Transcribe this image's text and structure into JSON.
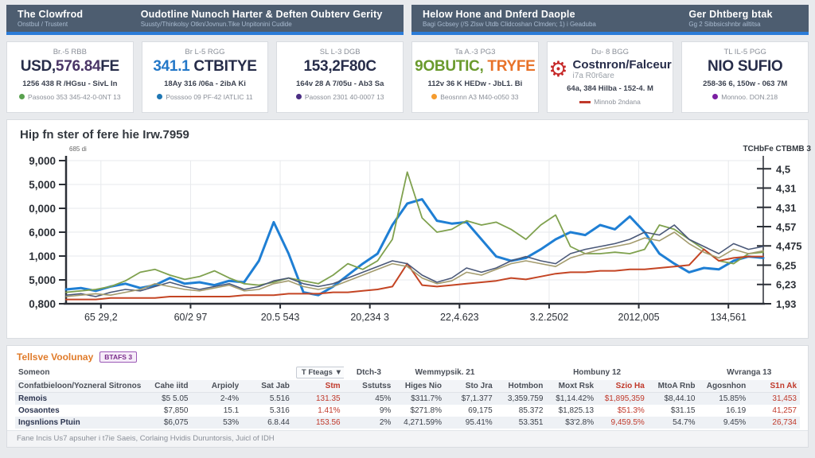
{
  "header": {
    "bars": [
      {
        "sections": [
          {
            "title": "The Clowfrod",
            "subtitle": "Onstbul / Trustent"
          },
          {
            "title": "Oudotline Nunoch Harter & Deften Oubterv Gerity",
            "subtitle": "Suusty/Thinkolsy Otkn/Jovnun.Tike Unpitonini Cudide"
          }
        ]
      },
      {
        "sections": [
          {
            "title": "Helow Hone and Dnferd Daople",
            "subtitle": "Bagi Gcbsey (/S Zlsw Utdb Clidcoshan Clmden; 1) i Geaduba"
          },
          {
            "title": "Ger Dhtberg btak",
            "subtitle": "Gg 2 Sibbsicshnbr ailtitsa"
          }
        ]
      }
    ]
  },
  "kpi_cards": [
    {
      "label": "Br.-5 RBB",
      "value_parts": [
        {
          "text": "USD,",
          "color": "#272d4a"
        },
        {
          "text": "576.84",
          "color": "#4a3566"
        },
        {
          "text": "FE",
          "color": "#272d4a"
        }
      ],
      "sub": "1256 438 R /HGsu - SivL In",
      "bullet": {
        "type": "dot",
        "color": "#59a14f",
        "text": "Pasosoo 353 345-42-0-0NT 13"
      }
    },
    {
      "label": "Br L-5 RGG",
      "value_parts": [
        {
          "text": "341.1",
          "color": "#2478c8"
        },
        {
          "text": " CTBITYE",
          "color": "#272d4a"
        }
      ],
      "sub": "18Ay 316 /06a - 2ibA Ki",
      "bullet": {
        "type": "dot",
        "color": "#1f77b4",
        "text": "Posssoo 09 PF-42 IATLIC 11"
      }
    },
    {
      "label": "SL L-3 DGB",
      "value_parts": [
        {
          "text": "153,2F80C",
          "color": "#272d4a"
        }
      ],
      "sub": "164v 28 A 7/05u - Ab3 Sa",
      "bullet": {
        "type": "dot",
        "color": "#4b2e83",
        "text": "Paosson 2301 40-0007 13"
      }
    },
    {
      "label": "Ta A.-3 PG3",
      "value_parts": [
        {
          "text": "9OBUTIC,",
          "color": "#6a9a2d"
        },
        {
          "text": " TRYFE",
          "color": "#e8732a"
        }
      ],
      "sub": "112v 36 K HEDw - JbL1. Bi",
      "bullet": {
        "type": "dot",
        "color": "#f59c2f",
        "text": "Beosnnn A3 M40-o050 33"
      }
    },
    {
      "label": "Du- 8 BGG",
      "gear": {
        "icon": "gear-icon",
        "title": "Costnron/Falceur",
        "subtitle": "i7a R0r6are"
      },
      "sub": "64a, 384 Hilba - 152-4. M",
      "bullet": {
        "type": "dash",
        "color": "#c0392b",
        "text": "Minnob 2ndana"
      }
    },
    {
      "label": "TL IL-5 PGG",
      "value_parts": [
        {
          "text": "NIO SUFIO",
          "color": "#272d4a"
        }
      ],
      "sub": "258-36 6, 150w - 063 7M",
      "bullet": {
        "type": "dot",
        "color": "#7b1fa2",
        "text": "Monnoo. DON.218"
      }
    }
  ],
  "chart_data": {
    "type": "line",
    "title": "Hip fn ster of fere hie Irw.7959",
    "y_axis_note": "685 di",
    "right_axis_title": "TCHbFe CTBMB 3",
    "y_left_ticks": [
      "9,000",
      "5,000",
      "0,000",
      "6,000",
      "1,000",
      "5,000",
      "0,800"
    ],
    "y_right_ticks": [
      "4,5",
      "4,31",
      "4,31",
      "4,57",
      "4,475",
      "6,25",
      "6,23",
      "1,93"
    ],
    "x_tick_labels": [
      "65 29,2",
      "60/2 97",
      "20.5 543",
      "20,234 3",
      "22,4.623",
      "3.2.2502",
      "2012,005",
      "134,561"
    ],
    "ylim": [
      0,
      100
    ],
    "grid": true,
    "legend": "none",
    "series": [
      {
        "name": "series-blue",
        "color": "#1f7fd4",
        "width": 3,
        "values": [
          10,
          11,
          9,
          12,
          14,
          11,
          13,
          18,
          14,
          15,
          13,
          16,
          15,
          30,
          57,
          35,
          8,
          6,
          12,
          20,
          28,
          35,
          55,
          70,
          73,
          58,
          56,
          57,
          45,
          33,
          30,
          32,
          38,
          45,
          50,
          48,
          55,
          52,
          61,
          50,
          35,
          28,
          22,
          25,
          24,
          30,
          33,
          32
        ]
      },
      {
        "name": "series-green",
        "color": "#7fa14e",
        "width": 1.8,
        "values": [
          8,
          9,
          10,
          12,
          16,
          22,
          24,
          20,
          17,
          19,
          23,
          18,
          14,
          13,
          15,
          18,
          16,
          14,
          20,
          28,
          24,
          30,
          45,
          92,
          60,
          50,
          52,
          58,
          55,
          57,
          52,
          45,
          55,
          62,
          40,
          35,
          35,
          36,
          35,
          38,
          55,
          52,
          45,
          38,
          30,
          28,
          35,
          36
        ]
      },
      {
        "name": "series-red",
        "color": "#c44524",
        "width": 2,
        "values": [
          3,
          3,
          3,
          4,
          4,
          4,
          4,
          5,
          5,
          5,
          5,
          5,
          6,
          6,
          6,
          7,
          7,
          7,
          8,
          8,
          9,
          10,
          12,
          28,
          13,
          12,
          13,
          14,
          15,
          16,
          18,
          17,
          19,
          21,
          22,
          22,
          23,
          23,
          24,
          24,
          25,
          26,
          27,
          38,
          30,
          32,
          33,
          33
        ]
      },
      {
        "name": "series-slate",
        "color": "#4a5878",
        "width": 1.6,
        "values": [
          6,
          7,
          5,
          8,
          10,
          9,
          12,
          15,
          12,
          10,
          12,
          14,
          10,
          12,
          16,
          18,
          14,
          12,
          14,
          18,
          22,
          26,
          30,
          28,
          20,
          15,
          18,
          25,
          22,
          25,
          30,
          33,
          30,
          28,
          35,
          38,
          40,
          42,
          45,
          50,
          48,
          55,
          45,
          40,
          35,
          42,
          38,
          40
        ]
      },
      {
        "name": "series-tan",
        "color": "#a39b6d",
        "width": 1.6,
        "values": [
          5,
          6,
          7,
          6,
          8,
          10,
          14,
          12,
          10,
          9,
          11,
          13,
          9,
          10,
          14,
          16,
          12,
          10,
          12,
          16,
          20,
          24,
          28,
          26,
          18,
          14,
          16,
          22,
          20,
          24,
          28,
          30,
          28,
          26,
          32,
          35,
          38,
          40,
          42,
          46,
          44,
          50,
          42,
          36,
          32,
          38,
          35,
          37
        ]
      }
    ]
  },
  "table": {
    "title": "Tellsve Voolunay",
    "badge": "BTAFS 3",
    "group_headers": [
      {
        "label": "Someon",
        "span": 1,
        "align": "left"
      },
      {
        "label": "",
        "span": 3
      },
      {
        "label": "T Fteags ▼",
        "span": 1,
        "type": "dropdown"
      },
      {
        "label": "Dtch-3",
        "span": 1
      },
      {
        "label": "Wemmypsik. 21",
        "span": 2
      },
      {
        "label": "",
        "span": 1
      },
      {
        "label": "Hombuny 12",
        "span": 2
      },
      {
        "label": "",
        "span": 1
      },
      {
        "label": "Wvranga 13",
        "span": 2
      }
    ],
    "columns": [
      {
        "label": "Confatbieloon/Yozneral Sitronos",
        "red": false
      },
      {
        "label": "Cahe iitd",
        "red": false
      },
      {
        "label": "Arpioly",
        "red": false
      },
      {
        "label": "Sat Jab",
        "red": false
      },
      {
        "label": "Stm",
        "red": true
      },
      {
        "label": "Sstutss",
        "red": false
      },
      {
        "label": "Higes Nio",
        "red": false
      },
      {
        "label": "Sto Jra",
        "red": false
      },
      {
        "label": "Hotmbon",
        "red": false
      },
      {
        "label": "Moxt Rsk",
        "red": false
      },
      {
        "label": "Szio Ha",
        "red": true
      },
      {
        "label": "MtoA Rnb",
        "red": false
      },
      {
        "label": "Agosnhon",
        "red": false
      },
      {
        "label": "S1n Ak",
        "red": true
      }
    ],
    "rows": [
      {
        "label": "Remois",
        "cells": [
          "$5 5.05",
          "2-4%",
          "5.516",
          "131.35",
          "45%",
          "$311.7%",
          "$7,1.377",
          "3,359.759",
          "$1,14.42%",
          "$1,895,359",
          "$8,44.10",
          "15.85%",
          "31,453"
        ]
      },
      {
        "label": "Oosaontes",
        "cells": [
          "$7,850",
          "15.1",
          "5.316",
          "1.41%",
          "9%",
          "$271.8%",
          "69,175",
          "85.372",
          "$1,825.13",
          "$51.3%",
          "$31.15",
          "16.19",
          "41,257"
        ]
      },
      {
        "label": "Ingsnlions Ptuin",
        "cells": [
          "$6,075",
          "53%",
          "6.8.44",
          "153.56",
          "2%",
          "4,271.59%",
          "95.41%",
          "53.351",
          "$3'2.8%",
          "9,459.5%",
          "54.7%",
          "9.45%",
          "26,734"
        ]
      }
    ],
    "footer": "Fane Incis Us7 apsuher i t7ie Saeis, Corlaing Hvidis Duruntorsis, Juicl of IDH"
  }
}
